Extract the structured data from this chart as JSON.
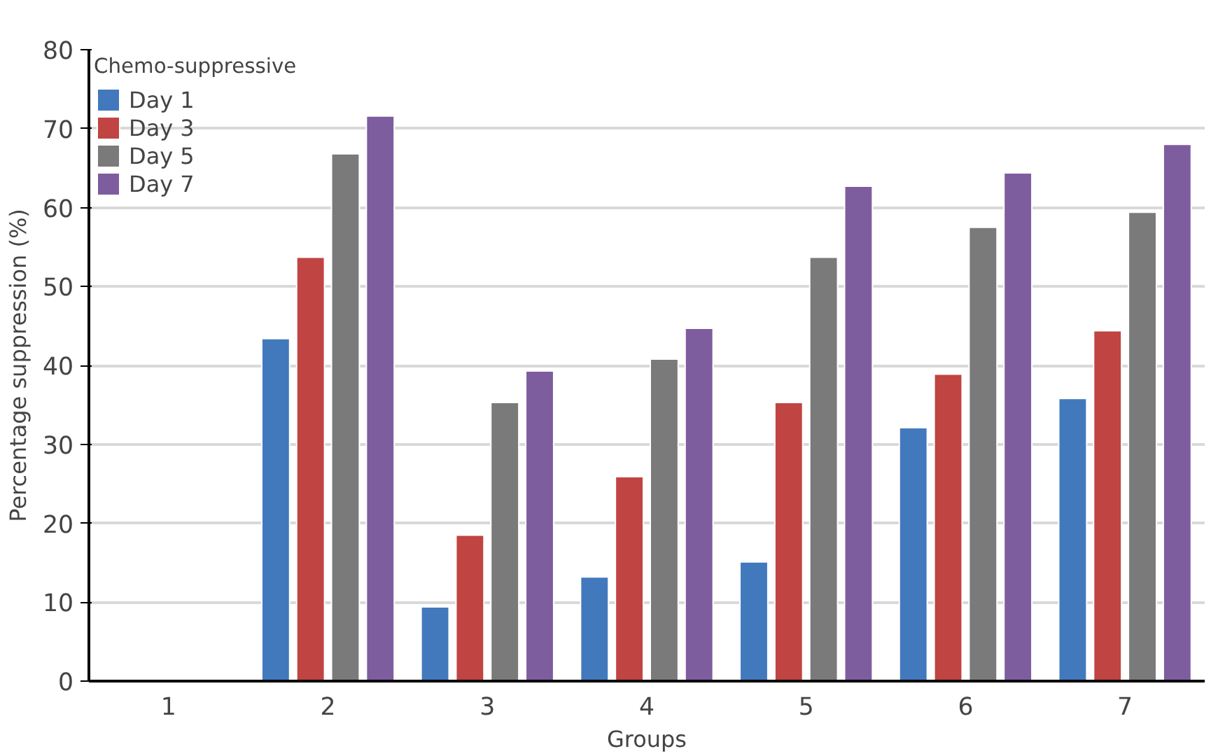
{
  "chart_data": {
    "type": "bar",
    "xlabel": "Groups",
    "ylabel": "Percentage suppression (%)",
    "legend_title": "Chemo-suppressive",
    "categories": [
      "1",
      "2",
      "3",
      "4",
      "5",
      "6",
      "7"
    ],
    "series": [
      {
        "name": "Day 1",
        "color": "#4279bd",
        "values": [
          null,
          43.4,
          9.4,
          13.2,
          15.1,
          32.1,
          35.8
        ]
      },
      {
        "name": "Day 3",
        "color": "#c04441",
        "values": [
          null,
          53.7,
          18.5,
          25.9,
          35.3,
          38.9,
          44.4
        ]
      },
      {
        "name": "Day 5",
        "color": "#7a7a7a",
        "values": [
          null,
          66.8,
          35.3,
          40.8,
          53.7,
          57.5,
          59.4
        ]
      },
      {
        "name": "Day 7",
        "color": "#7d5d9e",
        "values": [
          null,
          71.6,
          39.3,
          44.7,
          62.7,
          64.4,
          68.0
        ]
      }
    ],
    "ylim": [
      0,
      80
    ],
    "yticks": [
      0,
      10,
      20,
      30,
      40,
      50,
      60,
      70,
      80
    ],
    "grid": "y",
    "legend": "top left"
  }
}
